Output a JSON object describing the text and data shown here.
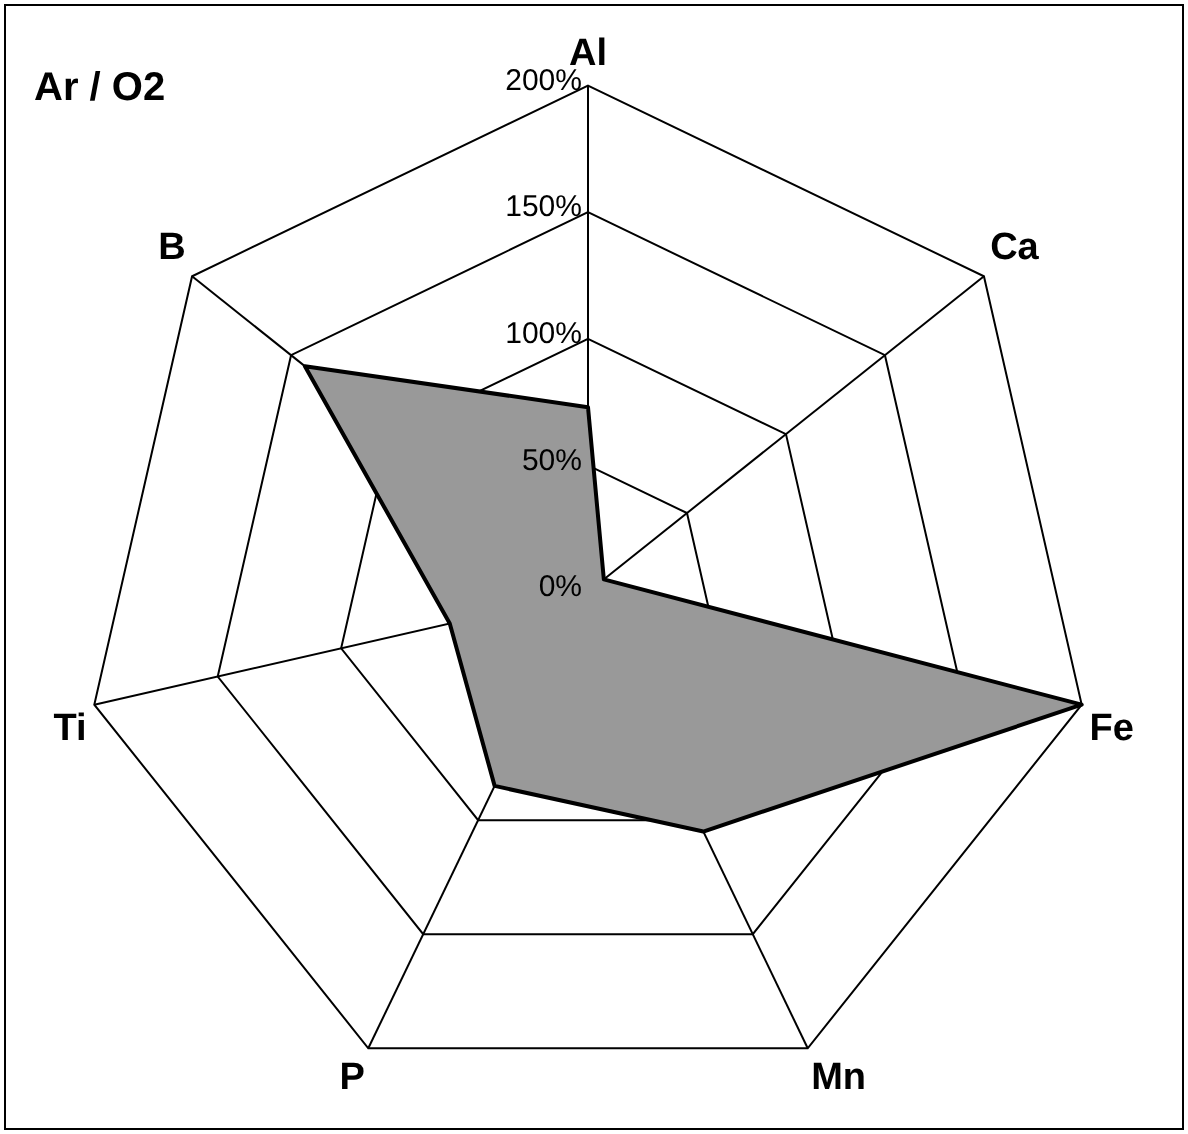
{
  "chart_data": {
    "type": "radar",
    "title": "Ar / O2",
    "categories": [
      "Al",
      "Ca",
      "Fe",
      "Mn",
      "P",
      "Ti",
      "B"
    ],
    "series": [
      {
        "color": "#999999",
        "values": [
          73,
          8,
          200,
          105,
          85,
          56,
          143
        ]
      }
    ],
    "ylim": [
      0,
      200
    ],
    "yticks": [
      {
        "value": 0,
        "label": "0%"
      },
      {
        "value": 50,
        "label": "50%"
      },
      {
        "value": 100,
        "label": "100%"
      },
      {
        "value": 150,
        "label": "150%"
      },
      {
        "value": 200,
        "label": "200%"
      }
    ],
    "grid": true,
    "legend": false,
    "marker": "none"
  }
}
